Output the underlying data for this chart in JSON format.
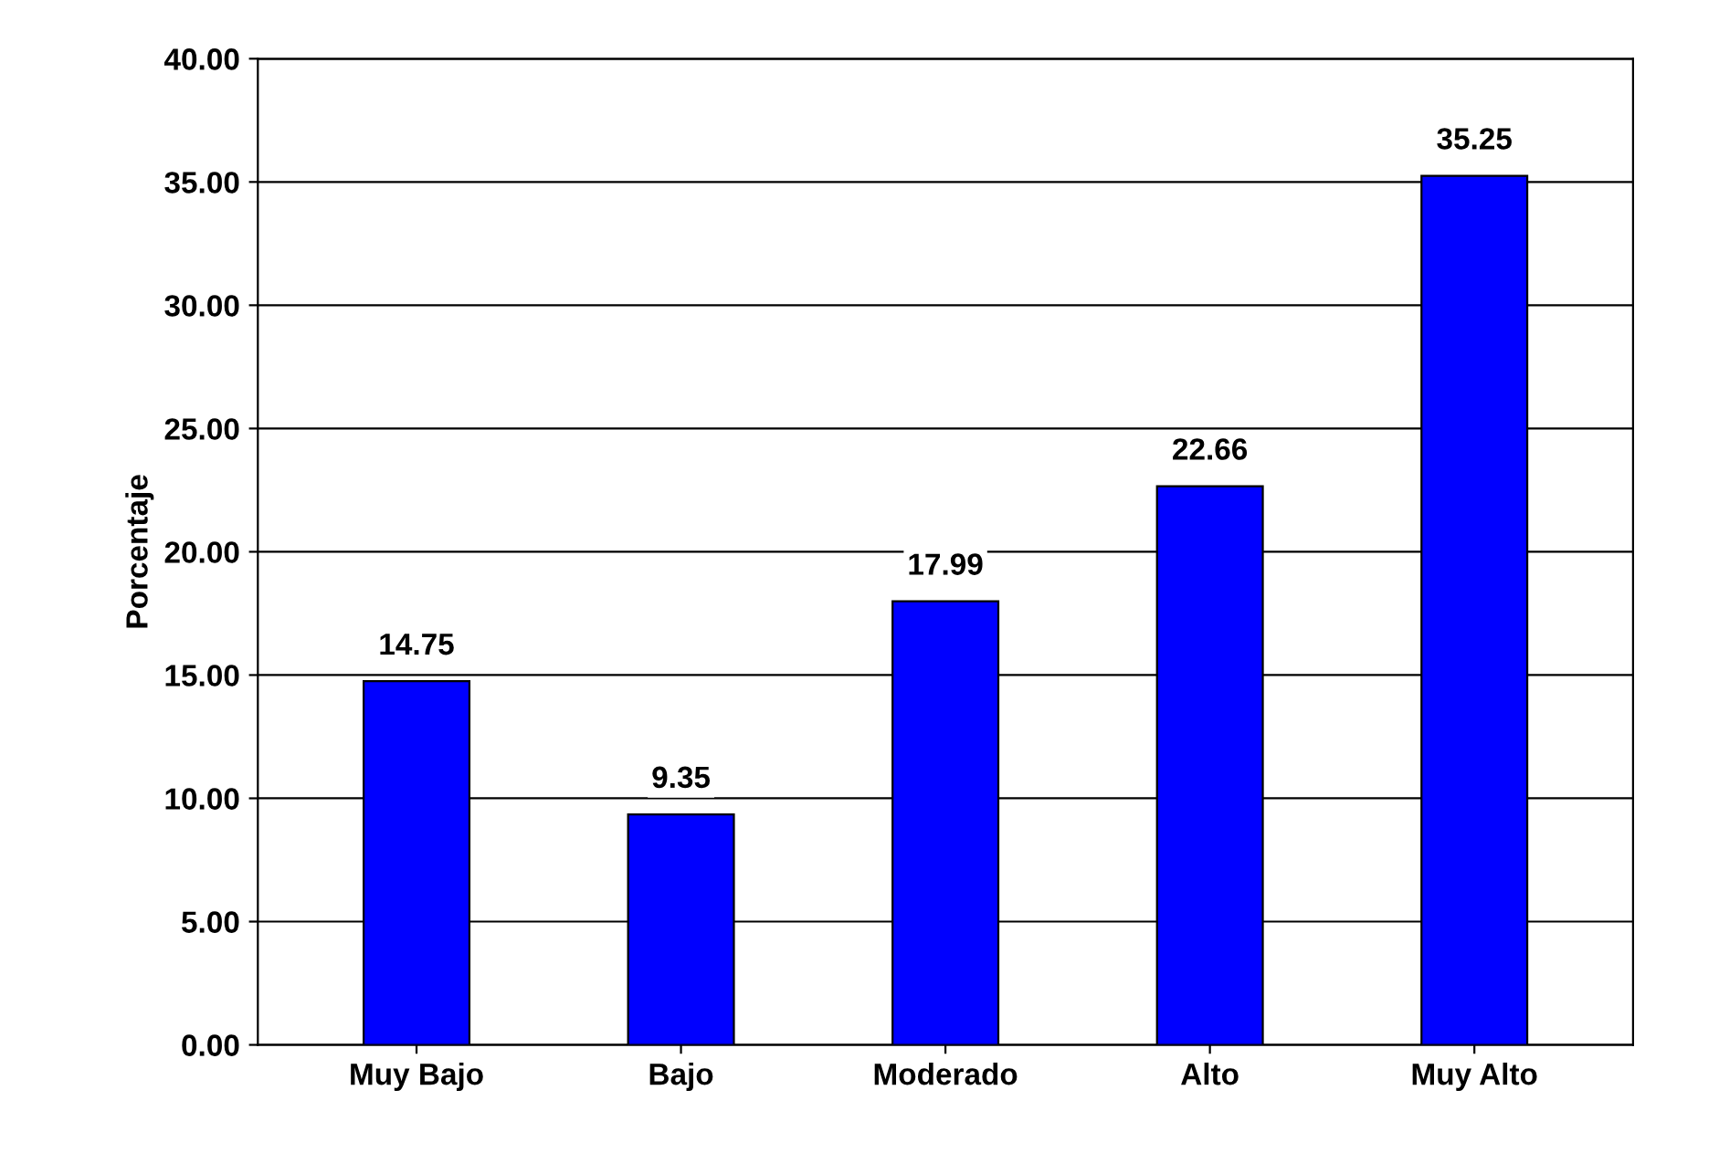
{
  "chart_data": {
    "type": "bar",
    "ylabel": "Porcentaje",
    "categories": [
      "Muy Bajo",
      "Bajo",
      "Moderado",
      "Alto",
      "Muy Alto"
    ],
    "values": [
      14.75,
      9.35,
      17.99,
      22.66,
      35.25
    ],
    "color": "#0000ff",
    "ylim": [
      0,
      40
    ],
    "yticks": [
      {
        "value": 0,
        "label": "0.00"
      },
      {
        "value": 5,
        "label": "5.00"
      },
      {
        "value": 10,
        "label": "10.00"
      },
      {
        "value": 15,
        "label": "15.00"
      },
      {
        "value": 20,
        "label": "20.00"
      },
      {
        "value": 25,
        "label": "25.00"
      },
      {
        "value": 30,
        "label": "30.00"
      },
      {
        "value": 35,
        "label": "35.00"
      },
      {
        "value": 40,
        "label": "40.00"
      }
    ],
    "grid": "y",
    "data_labels": true
  }
}
